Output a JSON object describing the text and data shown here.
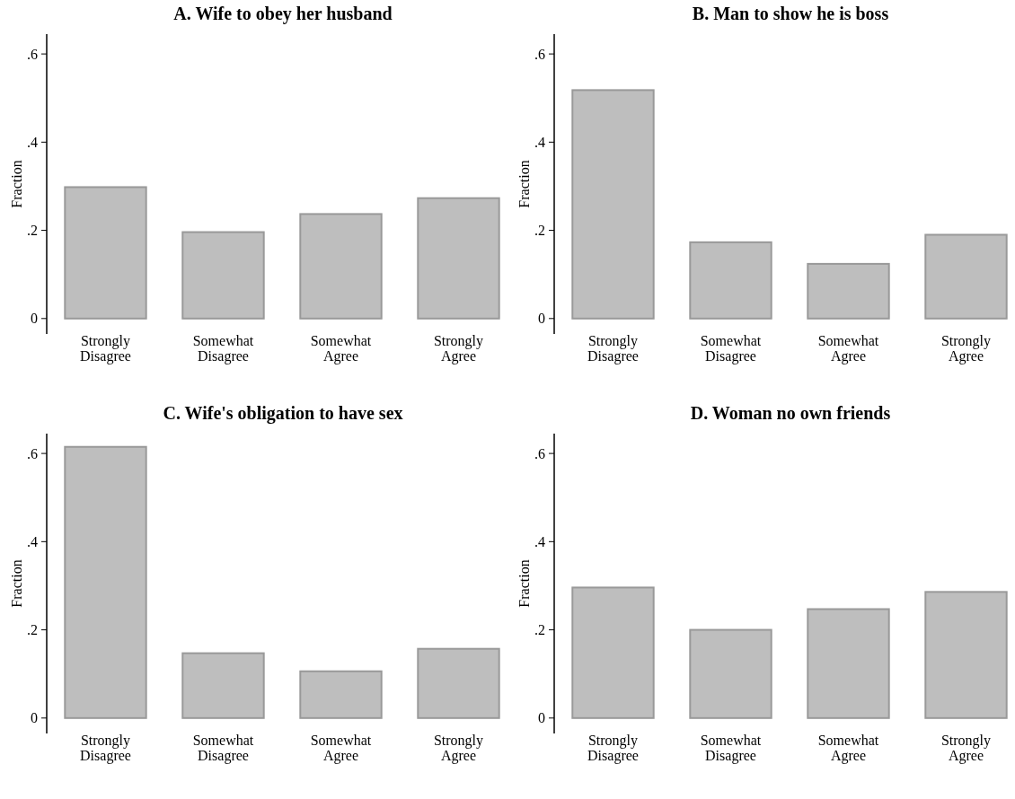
{
  "chart_data": [
    {
      "type": "bar",
      "title": "A. Wife to obey her husband",
      "ylabel": "Fraction",
      "categories": [
        "Strongly Disagree",
        "Somewhat Disagree",
        "Somewhat Agree",
        "Strongly Agree"
      ],
      "values": [
        0.298,
        0.196,
        0.237,
        0.273
      ],
      "color": "#bebebe",
      "ylim": [
        -0.035,
        0.645
      ],
      "yticks": [
        {
          "value": 0,
          "label": "0"
        },
        {
          "value": 0.2,
          "label": ".2"
        },
        {
          "value": 0.4,
          "label": ".4"
        },
        {
          "value": 0.6,
          "label": ".6"
        }
      ]
    },
    {
      "type": "bar",
      "title": "B. Man to show he is boss",
      "ylabel": "Fraction",
      "categories": [
        "Strongly Disagree",
        "Somewhat Disagree",
        "Somewhat Agree",
        "Strongly Agree"
      ],
      "values": [
        0.518,
        0.173,
        0.124,
        0.19
      ],
      "color": "#bebebe",
      "ylim": [
        -0.035,
        0.645
      ],
      "yticks": [
        {
          "value": 0,
          "label": "0"
        },
        {
          "value": 0.2,
          "label": ".2"
        },
        {
          "value": 0.4,
          "label": ".4"
        },
        {
          "value": 0.6,
          "label": ".6"
        }
      ]
    },
    {
      "type": "bar",
      "title": "C. Wife's obligation to have sex",
      "ylabel": "Fraction",
      "categories": [
        "Strongly Disagree",
        "Somewhat Disagree",
        "Somewhat Agree",
        "Strongly Agree"
      ],
      "values": [
        0.615,
        0.147,
        0.106,
        0.157
      ],
      "color": "#bebebe",
      "ylim": [
        -0.035,
        0.645
      ],
      "yticks": [
        {
          "value": 0,
          "label": "0"
        },
        {
          "value": 0.2,
          "label": ".2"
        },
        {
          "value": 0.4,
          "label": ".4"
        },
        {
          "value": 0.6,
          "label": ".6"
        }
      ]
    },
    {
      "type": "bar",
      "title": "D. Woman no own friends",
      "ylabel": "Fraction",
      "categories": [
        "Strongly Disagree",
        "Somewhat Disagree",
        "Somewhat Agree",
        "Strongly Agree"
      ],
      "values": [
        0.296,
        0.2,
        0.247,
        0.286
      ],
      "color": "#bebebe",
      "ylim": [
        -0.035,
        0.645
      ],
      "yticks": [
        {
          "value": 0,
          "label": "0"
        },
        {
          "value": 0.2,
          "label": ".2"
        },
        {
          "value": 0.4,
          "label": ".4"
        },
        {
          "value": 0.6,
          "label": ".6"
        }
      ]
    }
  ]
}
